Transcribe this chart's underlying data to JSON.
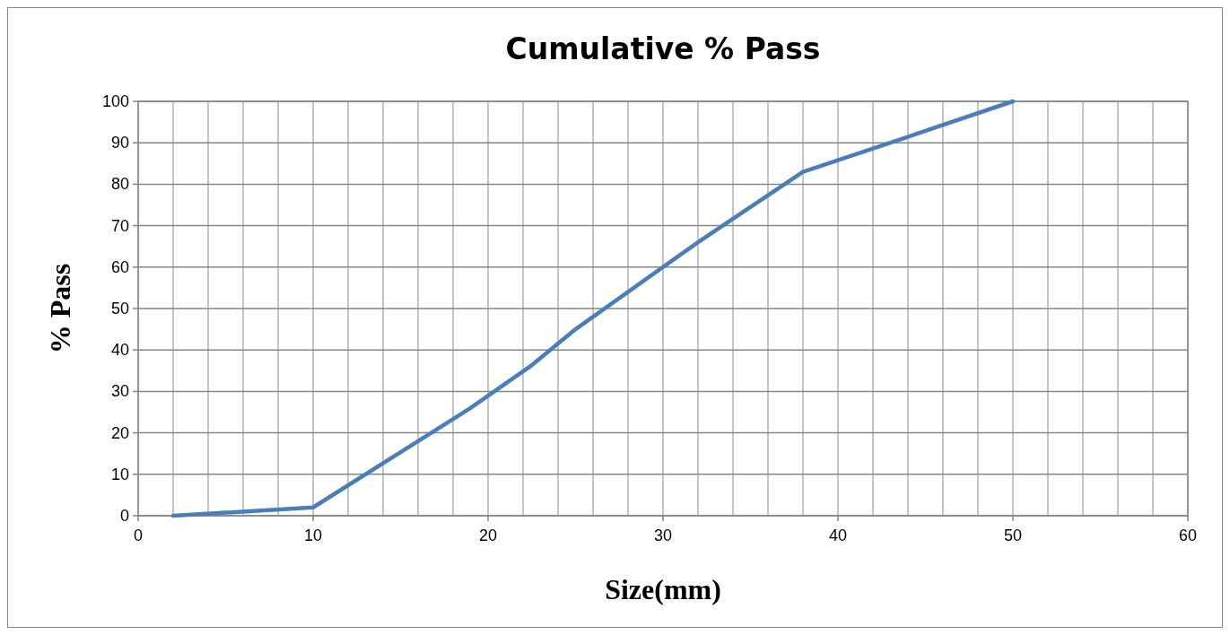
{
  "chart_data": {
    "type": "line",
    "title": "Cumulative % Pass",
    "xlabel": "Size(mm)",
    "ylabel": "% Pass",
    "x": [
      2,
      10,
      19,
      22.4,
      25,
      32,
      38,
      43,
      50
    ],
    "series": [
      {
        "color": "#4a7ebb",
        "values": [
          0,
          2,
          26,
          36,
          45,
          66,
          83,
          90,
          100
        ]
      }
    ],
    "xlim": [
      0,
      60
    ],
    "xticks": [
      0,
      10,
      20,
      30,
      40,
      50,
      60
    ],
    "ylim": [
      0,
      100
    ],
    "yticks": [
      0,
      10,
      20,
      30,
      40,
      50,
      60,
      70,
      80,
      90,
      100
    ],
    "grid": true,
    "marker": "none",
    "line_style": "solid"
  }
}
